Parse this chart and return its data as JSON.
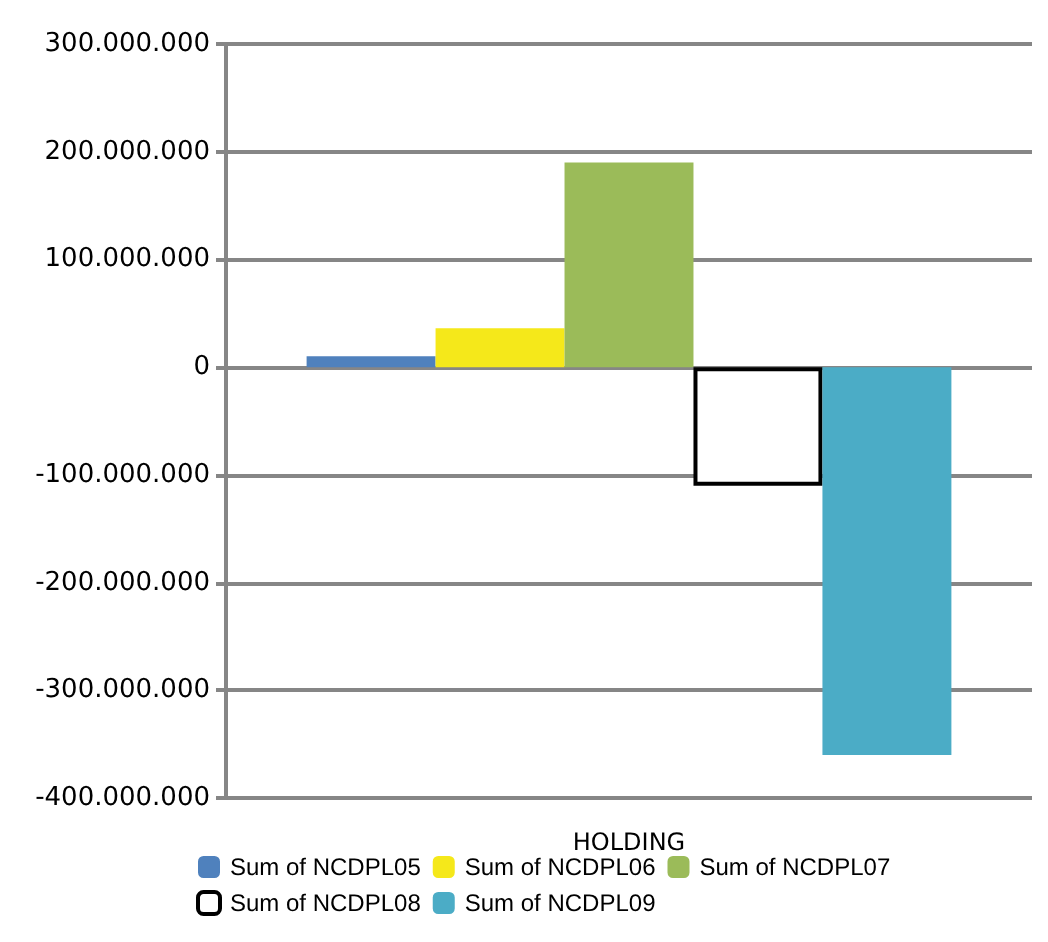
{
  "chart_data": {
    "type": "bar",
    "categories": [
      "HOLDING"
    ],
    "series": [
      {
        "name": "Sum of NCDPL05",
        "color": "#4f81bd",
        "values": [
          10000000
        ]
      },
      {
        "name": "Sum of NCDPL06",
        "color": "#f5e81a",
        "values": [
          36000000
        ]
      },
      {
        "name": "Sum of NCDPL07",
        "color": "#9bbb59",
        "values": [
          190000000
        ]
      },
      {
        "name": "Sum of NCDPL08",
        "color": "#ffffff",
        "values": [
          -110000000
        ]
      },
      {
        "name": "Sum of NCDPL09",
        "color": "#4bacc6",
        "values": [
          -360000000
        ]
      }
    ],
    "ylim": [
      -400000000,
      300000000
    ],
    "yticks": [
      {
        "value": -400000000,
        "label": "-400.000.000"
      },
      {
        "value": -300000000,
        "label": "-300.000.000"
      },
      {
        "value": -200000000,
        "label": "-200.000.000"
      },
      {
        "value": -100000000,
        "label": "-100.000.000"
      },
      {
        "value": 0,
        "label": "0"
      },
      {
        "value": 100000000,
        "label": "100.000.000"
      },
      {
        "value": 200000000,
        "label": "200.000.000"
      },
      {
        "value": 300000000,
        "label": "300.000.000"
      }
    ],
    "grid": "y",
    "legend": "bottom"
  }
}
